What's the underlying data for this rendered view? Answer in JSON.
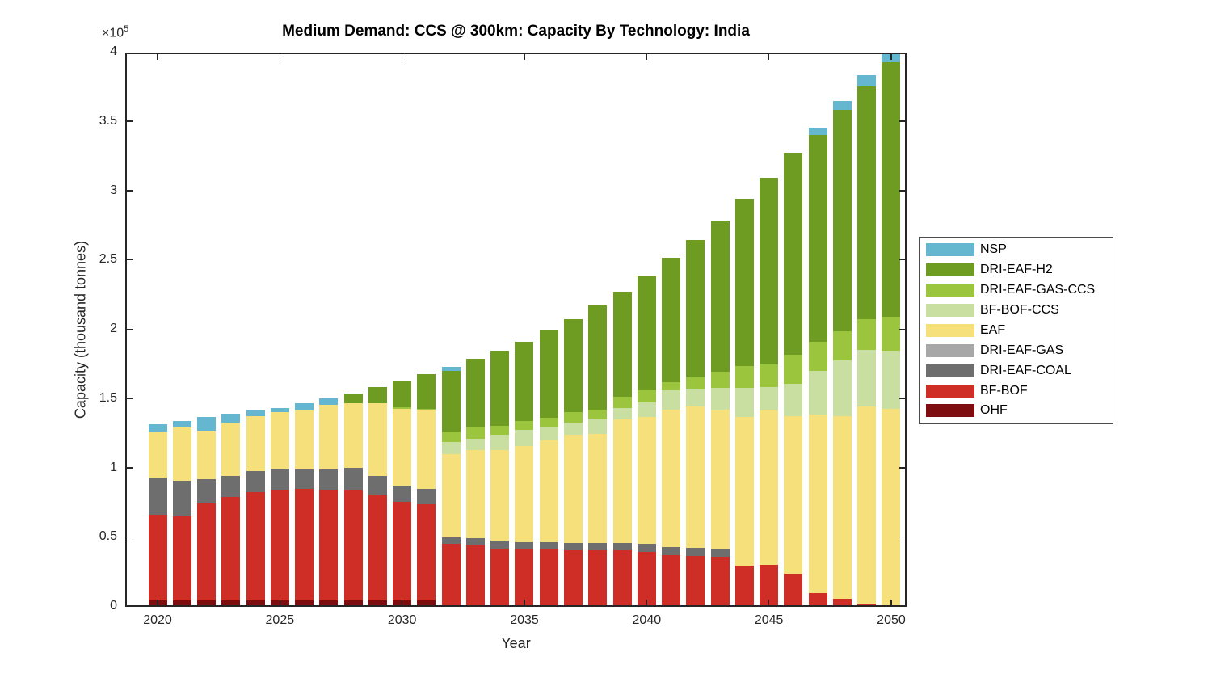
{
  "chart_data": {
    "type": "bar",
    "stacked": true,
    "title": "Medium Demand: CCS @ 300km: Capacity By Technology: India",
    "xlabel": "Year",
    "ylabel": "Capacity (thousand tonnes)",
    "y_exponent_base": "×10",
    "y_exponent": "5",
    "grid": false,
    "legend_position": "right-outside",
    "ylim": [
      0,
      400000
    ],
    "xticks": [
      2020,
      2025,
      2030,
      2035,
      2040,
      2045,
      2050
    ],
    "yticks": [
      {
        "value": 0,
        "label": "0"
      },
      {
        "value": 50000,
        "label": "0.5"
      },
      {
        "value": 100000,
        "label": "1"
      },
      {
        "value": 150000,
        "label": "1.5"
      },
      {
        "value": 200000,
        "label": "2"
      },
      {
        "value": 250000,
        "label": "2.5"
      },
      {
        "value": 300000,
        "label": "3"
      },
      {
        "value": 350000,
        "label": "3.5"
      },
      {
        "value": 400000,
        "label": "4"
      }
    ],
    "categories": [
      2020,
      2021,
      2022,
      2023,
      2024,
      2025,
      2026,
      2027,
      2028,
      2029,
      2030,
      2031,
      2032,
      2033,
      2034,
      2035,
      2036,
      2037,
      2038,
      2039,
      2040,
      2041,
      2042,
      2043,
      2044,
      2045,
      2046,
      2047,
      2048,
      2049,
      2050
    ],
    "legend_order_top_to_bottom": [
      "NSP",
      "DRI-EAF-H2",
      "DRI-EAF-GAS-CCS",
      "BF-BOF-CCS",
      "EAF",
      "DRI-EAF-GAS",
      "DRI-EAF-COAL",
      "BF-BOF",
      "OHF"
    ],
    "series": [
      {
        "name": "OHF",
        "color": "#7E0D0F",
        "values": [
          4500,
          4500,
          4700,
          4500,
          4800,
          4800,
          4800,
          4800,
          4800,
          4800,
          4500,
          4500,
          0,
          0,
          0,
          0,
          0,
          0,
          0,
          0,
          0,
          0,
          0,
          0,
          0,
          0,
          0,
          0,
          0,
          0,
          0
        ]
      },
      {
        "name": "BF-BOF",
        "color": "#CF2E27",
        "values": [
          62000,
          60600,
          70100,
          74800,
          77800,
          79800,
          80300,
          79800,
          79400,
          76400,
          71300,
          69400,
          45300,
          44300,
          42000,
          41400,
          41400,
          41000,
          40800,
          40800,
          39800,
          37500,
          36900,
          36000,
          29700,
          30100,
          23900,
          9900,
          5800,
          2300,
          0
        ]
      },
      {
        "name": "DRI-EAF-COAL",
        "color": "#6E6E6E",
        "values": [
          27000,
          25700,
          17200,
          15000,
          15200,
          15100,
          14200,
          14700,
          16100,
          13100,
          11700,
          11200,
          4800,
          5300,
          5600,
          5400,
          5400,
          5200,
          5400,
          5400,
          5900,
          5500,
          5500,
          5500,
          0,
          0,
          0,
          0,
          0,
          0,
          0
        ]
      },
      {
        "name": "DRI-EAF-GAS",
        "color": "#A7A7A7",
        "values": [
          0,
          0,
          0,
          0,
          0,
          0,
          0,
          0,
          0,
          0,
          0,
          0,
          0,
          0,
          0,
          0,
          0,
          0,
          0,
          0,
          0,
          0,
          0,
          0,
          0,
          0,
          0,
          0,
          0,
          0,
          0
        ]
      },
      {
        "name": "EAF",
        "color": "#F6E07C",
        "values": [
          33000,
          38400,
          35100,
          38800,
          39800,
          40800,
          42600,
          46500,
          46500,
          52600,
          55400,
          57000,
          60300,
          63700,
          65700,
          69400,
          73300,
          77800,
          78800,
          88900,
          91300,
          99500,
          102400,
          100500,
          107300,
          111400,
          113700,
          129100,
          131800,
          142100,
          142900
        ]
      },
      {
        "name": "BF-BOF-CCS",
        "color": "#C9DFA1",
        "values": [
          0,
          0,
          0,
          0,
          0,
          0,
          0,
          0,
          0,
          0,
          0,
          0,
          8700,
          7800,
          10700,
          11700,
          9700,
          8800,
          10700,
          8300,
          10300,
          13600,
          12200,
          16000,
          21000,
          16900,
          23300,
          31100,
          40200,
          40800,
          41800
        ]
      },
      {
        "name": "DRI-EAF-GAS-CCS",
        "color": "#9AC53D",
        "values": [
          0,
          0,
          0,
          0,
          0,
          0,
          0,
          0,
          0,
          0,
          1000,
          1000,
          7400,
          8700,
          6800,
          6400,
          6500,
          7700,
          6800,
          8200,
          8800,
          5800,
          8400,
          11700,
          16000,
          16700,
          20800,
          21000,
          21000,
          22400,
          24800
        ]
      },
      {
        "name": "DRI-EAF-H2",
        "color": "#6E9B21",
        "values": [
          0,
          0,
          0,
          0,
          0,
          0,
          0,
          0,
          6900,
          11600,
          19000,
          24600,
          43600,
          49000,
          53900,
          57200,
          63500,
          67100,
          75200,
          75800,
          82200,
          90000,
          99100,
          108800,
          120500,
          134500,
          146000,
          149600,
          159900,
          168100,
          183700
        ]
      },
      {
        "name": "NSP",
        "color": "#65B6CF",
        "values": [
          5500,
          5200,
          9900,
          6400,
          4100,
          2900,
          4900,
          4500,
          0,
          0,
          0,
          0,
          3100,
          0,
          0,
          0,
          0,
          0,
          0,
          0,
          0,
          0,
          0,
          0,
          0,
          0,
          0,
          4900,
          6300,
          7800,
          7800
        ]
      }
    ]
  }
}
